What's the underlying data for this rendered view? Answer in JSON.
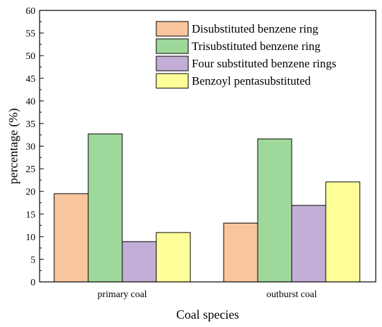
{
  "chart_data": {
    "type": "bar",
    "categories": [
      "primary coal",
      "outburst coal"
    ],
    "series": [
      {
        "name": "Disubstituted benzene ring",
        "values": [
          19.5,
          13.0
        ],
        "color": "#f9c59c"
      },
      {
        "name": "Trisubstituted benzene ring",
        "values": [
          32.7,
          31.6
        ],
        "color": "#9fd89b"
      },
      {
        "name": "Four substituted benzene rings",
        "values": [
          8.9,
          16.9
        ],
        "color": "#c2aed6"
      },
      {
        "name": "Benzoyl pentasubstituted",
        "values": [
          10.9,
          22.1
        ],
        "color": "#ffff99"
      }
    ],
    "xlabel": "Coal species",
    "ylabel": "percentage (%)",
    "ylim": [
      0,
      60
    ],
    "yticks": [
      0,
      5,
      10,
      15,
      20,
      25,
      30,
      35,
      40,
      45,
      50,
      55,
      60
    ],
    "grid": false,
    "legend_position": "top-right"
  }
}
